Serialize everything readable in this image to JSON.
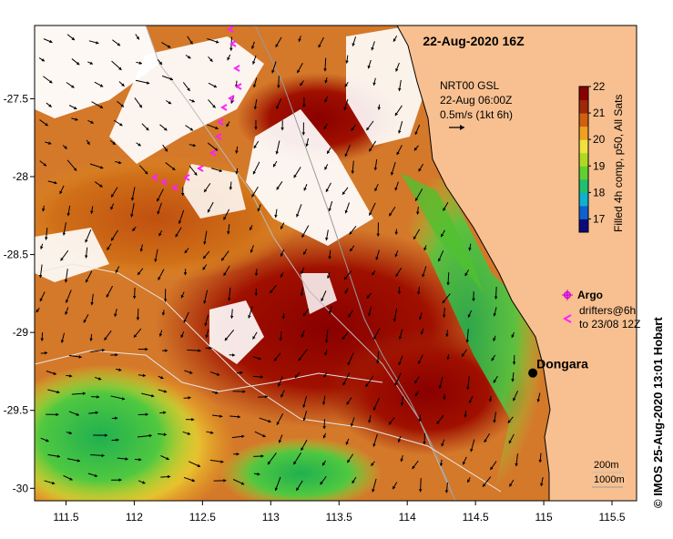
{
  "map": {
    "title": "22-Aug-2020 16Z",
    "current_legend": {
      "line1": "NRT00 GSL",
      "line2": "22-Aug 06:00Z",
      "line3": "0.5m/s (1kt 6h)"
    },
    "colorbar": {
      "label": "Filled 4h comp, p50, All Sats",
      "ticks": [
        "22",
        "21",
        "20",
        "19",
        "18",
        "17"
      ],
      "min": 16.5,
      "max": 22,
      "colors": [
        "#0a0a7a",
        "#1060d0",
        "#10b0d0",
        "#20c070",
        "#60d030",
        "#b0d820",
        "#f0e040",
        "#f0a020",
        "#d06010",
        "#a02808",
        "#8a0000"
      ]
    },
    "x_axis": {
      "ticks": [
        "111.5",
        "112",
        "112.5",
        "113",
        "113.5",
        "114",
        "114.5",
        "115",
        "115.5"
      ],
      "values": [
        111.5,
        112,
        112.5,
        113,
        113.5,
        114,
        114.5,
        115,
        115.5
      ],
      "range": [
        111.27,
        115.68
      ]
    },
    "y_axis": {
      "ticks": [
        "-27.5",
        "-28",
        "-28.5",
        "-29",
        "-29.5",
        "-30"
      ],
      "values": [
        -27.5,
        -28,
        -28.5,
        -29,
        -29.5,
        -30
      ],
      "range": [
        -30.08,
        -27.03
      ]
    },
    "argo_legend": {
      "argo_label": "Argo",
      "drifters_line1": "drifters@6h",
      "drifters_line2": "to 23/08 12Z"
    },
    "place": {
      "name": "Dongara",
      "lon": 114.92,
      "lat": -29.26
    },
    "isobaths": {
      "line1": "200m",
      "line2": "1000m"
    },
    "credit": "© IMOS 25-Aug-2020 13:01 Hobart",
    "land_color": "#f8c090",
    "cloud_color": "#ffffff"
  }
}
